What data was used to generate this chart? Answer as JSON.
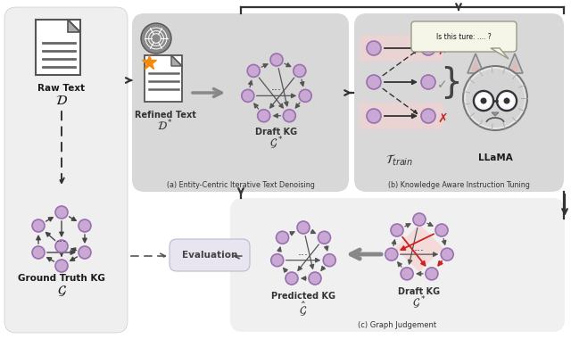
{
  "bg_color": "#ffffff",
  "left_panel_color": "#efefef",
  "mid_panel_color": "#d8d8d8",
  "bottom_panel_color": "#f0eef8",
  "eval_box_color": "#e8e4f0",
  "node_color": "#c9a8d4",
  "node_edge_color": "#9a70b0",
  "arrow_color": "#555555",
  "red_color": "#cc2222",
  "orange_color": "#f5890a",
  "panel_a_label": "(a) Entity-Centric Iterative Text Denoising",
  "panel_b_label": "(b) Knowledge Aware Instruction Tuning",
  "panel_c_label": "(c) Graph Judgement",
  "raw_text_label": "Raw Text",
  "ground_truth_label": "Ground Truth KG",
  "refined_text_label": "Refined Text",
  "draft_kg_label": "Draft KG",
  "llama_label": "LLaMA",
  "predicted_kg_label": "Predicted KG",
  "draft_kg2_label": "Draft KG",
  "evaluation_label": "Evaluation",
  "speech_bubble_text": "Is this ture: .... ?",
  "figw": 6.4,
  "figh": 3.8
}
